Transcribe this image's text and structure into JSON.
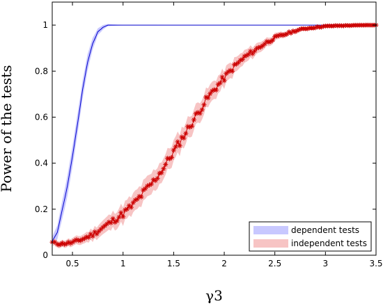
{
  "chart_data": {
    "type": "line",
    "xlabel": "γ3",
    "ylabel": "Power of the tests",
    "xlim": [
      0.3,
      3.5
    ],
    "ylim": [
      0,
      1.1
    ],
    "xticks": [
      "0.5",
      "1",
      "1.5",
      "2",
      "2.5",
      "3",
      "3.5"
    ],
    "yticks": [
      "0",
      "0.2",
      "0.4",
      "0.6",
      "0.8",
      "1"
    ],
    "grid": false,
    "legend_position": "bottom-right",
    "series": [
      {
        "name": "dependent tests",
        "line_color": "#0000cc",
        "band_color": "#c8c8ff",
        "marker": "none",
        "x": [
          0.3,
          0.35,
          0.4,
          0.45,
          0.5,
          0.55,
          0.6,
          0.65,
          0.7,
          0.75,
          0.8,
          0.85,
          0.9,
          0.95,
          1.0,
          3.5
        ],
        "y": [
          0.06,
          0.1,
          0.2,
          0.3,
          0.43,
          0.57,
          0.72,
          0.84,
          0.92,
          0.97,
          0.99,
          1.0,
          1.0,
          1.0,
          1.0,
          1.0
        ],
        "band_halfwidth": [
          0.02,
          0.03,
          0.04,
          0.045,
          0.045,
          0.045,
          0.04,
          0.035,
          0.025,
          0.015,
          0.01,
          0.005,
          0.003,
          0.002,
          0.001,
          0.0
        ]
      },
      {
        "name": "independent tests",
        "line_color": "#cc0000",
        "band_color": "#f7c4c4",
        "marker": "star",
        "x": [
          0.3,
          0.35,
          0.4,
          0.5,
          0.6,
          0.7,
          0.8,
          0.9,
          1.0,
          1.1,
          1.2,
          1.3,
          1.4,
          1.5,
          1.6,
          1.7,
          1.8,
          1.9,
          2.0,
          2.1,
          2.2,
          2.3,
          2.4,
          2.5,
          2.6,
          2.7,
          2.8,
          2.9,
          3.0,
          3.1,
          3.2,
          3.3,
          3.4,
          3.5
        ],
        "y": [
          0.055,
          0.05,
          0.05,
          0.055,
          0.07,
          0.09,
          0.12,
          0.15,
          0.18,
          0.22,
          0.27,
          0.32,
          0.38,
          0.45,
          0.52,
          0.59,
          0.66,
          0.72,
          0.77,
          0.82,
          0.86,
          0.89,
          0.92,
          0.945,
          0.96,
          0.975,
          0.985,
          0.99,
          0.995,
          0.997,
          0.998,
          0.999,
          1.0,
          1.0
        ],
        "band_halfwidth": [
          0.015,
          0.015,
          0.015,
          0.018,
          0.02,
          0.025,
          0.03,
          0.035,
          0.04,
          0.042,
          0.045,
          0.045,
          0.045,
          0.045,
          0.045,
          0.045,
          0.042,
          0.04,
          0.036,
          0.032,
          0.028,
          0.024,
          0.02,
          0.016,
          0.013,
          0.01,
          0.008,
          0.006,
          0.005,
          0.004,
          0.003,
          0.002,
          0.001,
          0.001
        ]
      }
    ]
  }
}
